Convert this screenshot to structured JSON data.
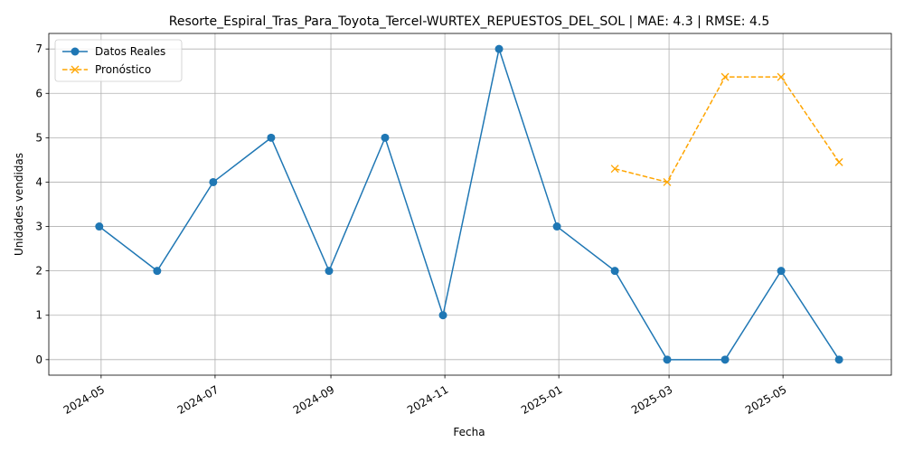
{
  "chart_data": {
    "type": "line",
    "title": "Resorte_Espiral_Tras_Para_Toyota_Tercel-WURTEX_REPUESTOS_DEL_SOL | MAE: 4.3 | RMSE: 4.5",
    "xlabel": "Fecha",
    "ylabel": "Unidades vendidas",
    "ylim": [
      -0.35,
      7.35
    ],
    "xlim": [
      "2024-04-03",
      "2025-06-28"
    ],
    "x_ticks": [
      "2024-05",
      "2024-07",
      "2024-09",
      "2024-11",
      "2025-01",
      "2025-03",
      "2025-05"
    ],
    "y_ticks": [
      0,
      1,
      2,
      3,
      4,
      5,
      6,
      7
    ],
    "grid": true,
    "legend_position": "top-left",
    "series": [
      {
        "name": "Datos Reales",
        "color": "#1f77b4",
        "marker": "circle",
        "line_style": "solid",
        "x": [
          "2024-04-30",
          "2024-05-31",
          "2024-06-30",
          "2024-07-31",
          "2024-08-31",
          "2024-09-30",
          "2024-10-31",
          "2024-11-30",
          "2024-12-31",
          "2025-01-31",
          "2025-02-28",
          "2025-03-31",
          "2025-04-30",
          "2025-05-31"
        ],
        "values": [
          3,
          2,
          4,
          5,
          2,
          5,
          1,
          7,
          3,
          2,
          0,
          0,
          2,
          0
        ]
      },
      {
        "name": "Pronóstico",
        "color": "#ffa500",
        "marker": "x",
        "line_style": "dashed",
        "x": [
          "2025-01-31",
          "2025-02-28",
          "2025-03-31",
          "2025-04-30",
          "2025-05-31"
        ],
        "values": [
          4.3,
          4.0,
          6.37,
          6.37,
          4.45
        ]
      }
    ]
  }
}
